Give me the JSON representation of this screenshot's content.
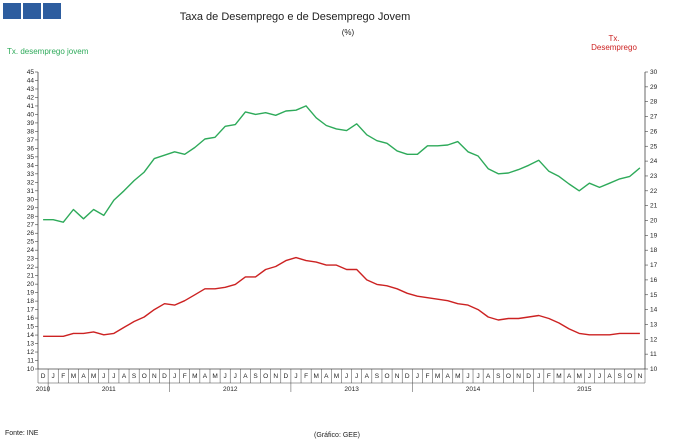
{
  "chart_data": {
    "type": "line",
    "title": "Taxa de Desemprego e de Desemprego Jovem",
    "subtitle": "(%)",
    "left_axis_label": "Tx. desemprego jovem",
    "right_axis_label_line1": "Tx.",
    "right_axis_label_line2": "Desemprego",
    "left_ylim": [
      10,
      45
    ],
    "right_ylim": [
      10,
      30
    ],
    "left_ticks": [
      10,
      11,
      12,
      13,
      14,
      15,
      16,
      17,
      18,
      19,
      20,
      21,
      22,
      23,
      24,
      25,
      26,
      27,
      28,
      29,
      30,
      31,
      32,
      33,
      34,
      35,
      36,
      37,
      38,
      39,
      40,
      41,
      42,
      43,
      44,
      45
    ],
    "right_ticks": [
      10,
      11,
      12,
      13,
      14,
      15,
      16,
      17,
      18,
      19,
      20,
      21,
      22,
      23,
      24,
      25,
      26,
      27,
      28,
      29,
      30
    ],
    "month_labels": [
      "D",
      "J",
      "F",
      "M",
      "A",
      "M",
      "J",
      "J",
      "A",
      "S",
      "O",
      "N",
      "D",
      "J",
      "F",
      "M",
      "A",
      "M",
      "J",
      "J",
      "A",
      "S",
      "O",
      "N",
      "D",
      "J",
      "F",
      "M",
      "A",
      "M",
      "J",
      "J",
      "A",
      "S",
      "O",
      "N",
      "D",
      "J",
      "F",
      "M",
      "A",
      "M",
      "J",
      "J",
      "A",
      "S",
      "O",
      "N",
      "D",
      "J",
      "F",
      "M",
      "A",
      "M",
      "J",
      "J",
      "A",
      "S",
      "O",
      "N"
    ],
    "year_labels": [
      {
        "label": "2010",
        "index": 0
      },
      {
        "label": "2011",
        "index": 6.5
      },
      {
        "label": "2012",
        "index": 18.5
      },
      {
        "label": "2013",
        "index": 30.5
      },
      {
        "label": "2014",
        "index": 42.5
      },
      {
        "label": "2015",
        "index": 53.5
      }
    ],
    "grid": false,
    "series": [
      {
        "name": "Tx. desemprego jovem",
        "axis": "left",
        "color": "#2eaa5a",
        "values": [
          27.6,
          27.6,
          27.3,
          28.8,
          27.7,
          28.8,
          28.1,
          29.9,
          31.0,
          32.2,
          33.2,
          34.8,
          35.2,
          35.6,
          35.3,
          36.1,
          37.1,
          37.3,
          38.6,
          38.8,
          40.3,
          40.0,
          40.2,
          39.9,
          40.4,
          40.5,
          41.0,
          39.6,
          38.7,
          38.3,
          38.1,
          38.9,
          37.6,
          36.9,
          36.6,
          35.7,
          35.3,
          35.3,
          36.3,
          36.3,
          36.4,
          36.8,
          35.6,
          35.1,
          33.6,
          33.0,
          33.1,
          33.5,
          34.0,
          34.6,
          33.3,
          32.7,
          31.8,
          31.0,
          31.9,
          31.4,
          31.9,
          32.4,
          32.7,
          33.7
        ]
      },
      {
        "name": "Tx. Desemprego",
        "axis": "right",
        "color": "#cc2222",
        "values": [
          12.2,
          12.2,
          12.2,
          12.4,
          12.4,
          12.5,
          12.3,
          12.4,
          12.8,
          13.2,
          13.5,
          14.0,
          14.4,
          14.3,
          14.6,
          15.0,
          15.4,
          15.4,
          15.5,
          15.7,
          16.2,
          16.2,
          16.7,
          16.9,
          17.3,
          17.5,
          17.3,
          17.2,
          17.0,
          17.0,
          16.7,
          16.7,
          16.0,
          15.7,
          15.6,
          15.4,
          15.1,
          14.9,
          14.8,
          14.7,
          14.6,
          14.4,
          14.3,
          14.0,
          13.5,
          13.3,
          13.4,
          13.4,
          13.5,
          13.6,
          13.4,
          13.1,
          12.7,
          12.4,
          12.3,
          12.3,
          12.3,
          12.4,
          12.4,
          12.4
        ]
      }
    ]
  },
  "footer": {
    "source": "Fonte: INE",
    "credit": "(Gráfico: GEE)"
  }
}
